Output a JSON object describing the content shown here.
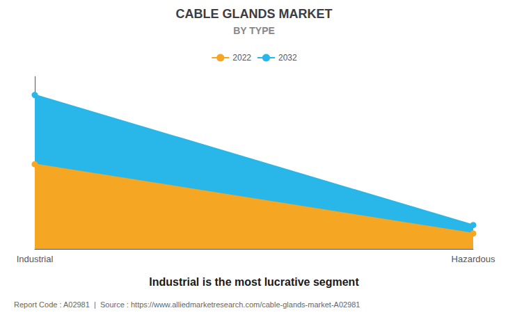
{
  "chart_data": {
    "type": "area",
    "title": "CABLE GLANDS MARKET",
    "subtitle": "BY TYPE",
    "categories": [
      "Industrial",
      "Hazardous"
    ],
    "series": [
      {
        "name": "2022",
        "color": "#F5A623",
        "values": [
          0.55,
          0.1
        ],
        "marker": "circle"
      },
      {
        "name": "2032",
        "color": "#29B6E8",
        "values": [
          1.0,
          0.155
        ],
        "marker": "circle"
      }
    ],
    "ylim": [
      0,
      1.12
    ],
    "yticks": [],
    "grid": false,
    "legend": "top",
    "tick_labels": "x",
    "annotations": [
      "Industrial is the most lucrative segment",
      "Report Code : A02981  |  Source : https://www.alliedmarketresearch.com/cable-glands-market-A02981"
    ]
  }
}
